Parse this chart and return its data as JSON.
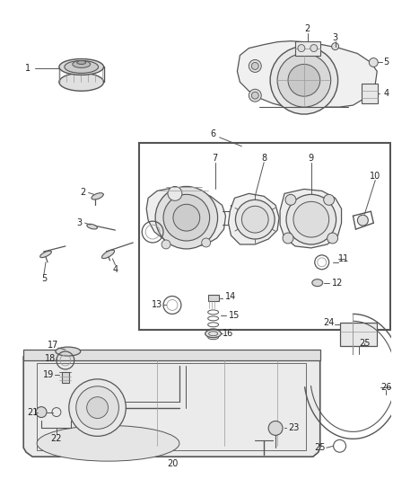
{
  "background_color": "#ffffff",
  "fig_width": 4.38,
  "fig_height": 5.33,
  "dpi": 100,
  "line_color": "#555555",
  "light_gray": "#cccccc",
  "mid_gray": "#999999",
  "dark_gray": "#444444"
}
